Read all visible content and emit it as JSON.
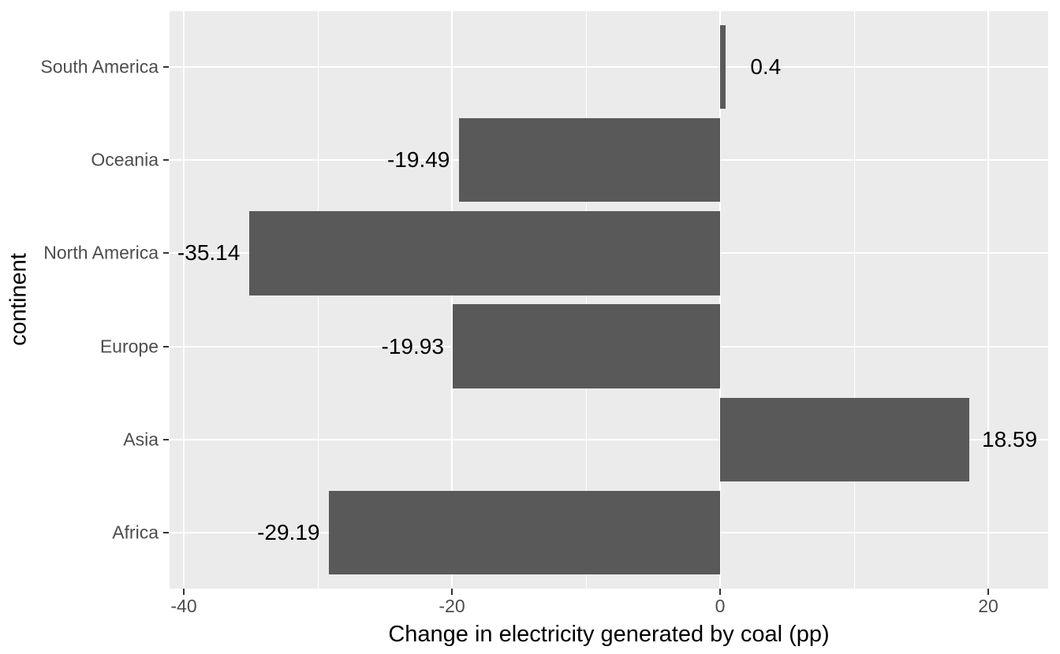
{
  "chart_data": {
    "type": "bar",
    "orientation": "horizontal",
    "title": "",
    "xlabel": "Change in electricity generated by coal (pp)",
    "ylabel": "continent",
    "categories_order": "top_to_bottom",
    "categories": [
      "South America",
      "Oceania",
      "North America",
      "Europe",
      "Asia",
      "Africa"
    ],
    "values": [
      0.4,
      -19.49,
      -35.14,
      -19.93,
      18.59,
      -29.19
    ],
    "bar_labels": [
      "0.4",
      "-19.49",
      "-35.14",
      "-19.93",
      "18.59",
      "-29.19"
    ],
    "x_ticks": [
      -40,
      -20,
      0,
      20
    ],
    "x_tick_labels": [
      "-40",
      "-20",
      "0",
      "20"
    ],
    "x_minor_ticks": [
      -30,
      -10,
      10
    ],
    "xlim": [
      -41.06,
      24.47
    ],
    "label_offset_units": 3,
    "grid": "white major and minor vertical gridlines, white major horizontal gridlines on gray panel",
    "legend": "none",
    "colors": {
      "bar_fill": "#595959",
      "panel_background": "#EBEBEB",
      "gridline": "#FFFFFF",
      "tick_label": "#4D4D4D",
      "axis_title": "#000000",
      "tick_mark": "#333333",
      "figure_background": "#FFFFFF"
    }
  }
}
